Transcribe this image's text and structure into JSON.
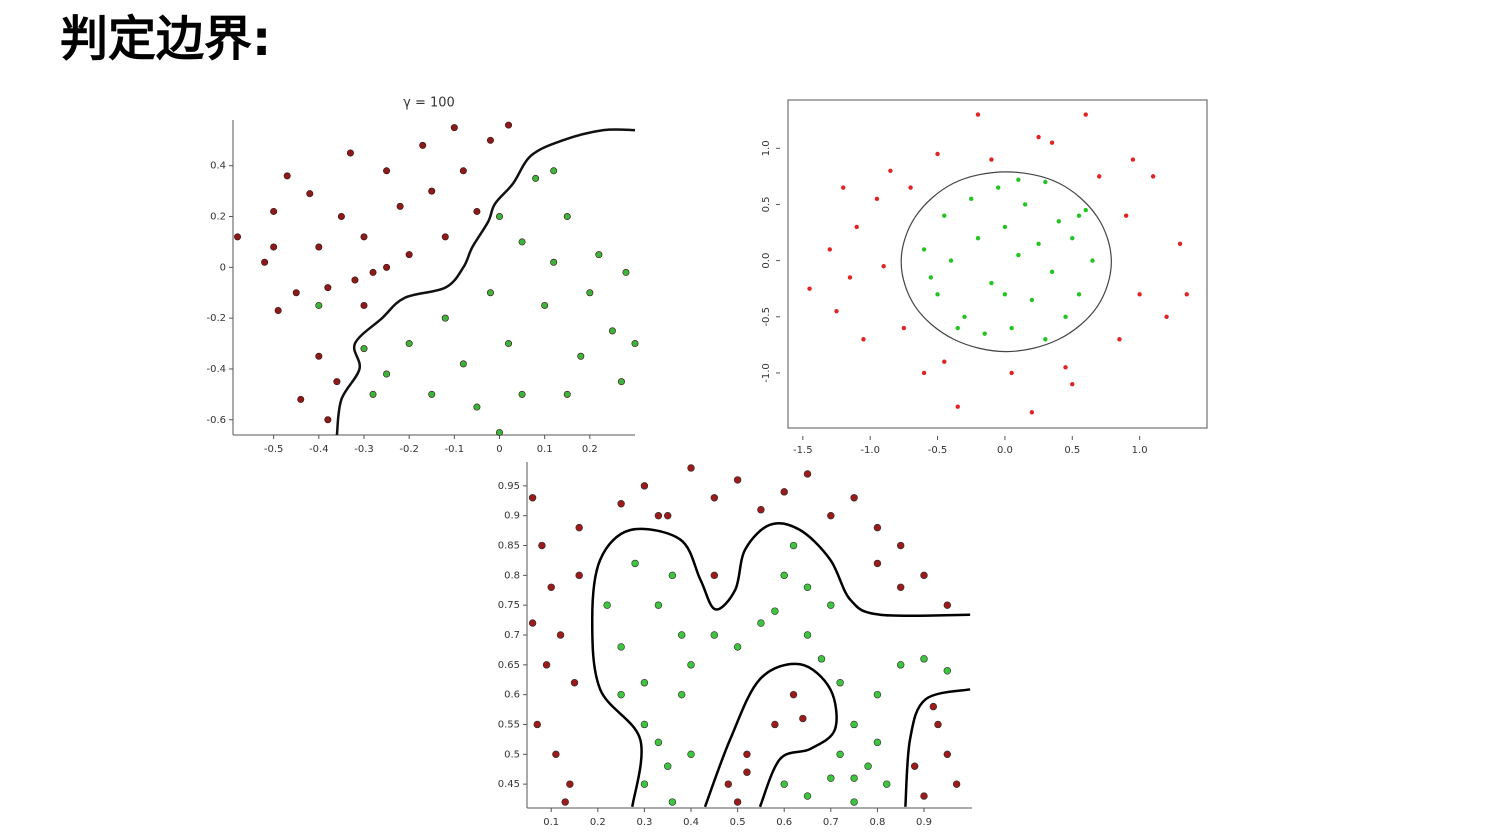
{
  "title": "判定边界:",
  "chart_data": [
    {
      "type": "scatter",
      "title": "γ = 100",
      "frame": false,
      "edgecolor": "#3a1010",
      "xlim": [
        -0.59,
        0.3
      ],
      "ylim": [
        -0.66,
        0.58
      ],
      "xticks": [
        -0.5,
        -0.4,
        -0.3,
        -0.2,
        -0.1,
        0,
        0.1,
        0.2
      ],
      "yticks": [
        -0.6,
        -0.4,
        -0.2,
        0,
        0.2,
        0.4
      ],
      "series": [
        {
          "color": "#8b1a1a",
          "x": [
            -0.58,
            -0.52,
            -0.5,
            -0.5,
            -0.47,
            -0.45,
            -0.49,
            -0.42,
            -0.4,
            -0.38,
            -0.35,
            -0.33,
            -0.3,
            -0.28,
            -0.25,
            -0.22,
            -0.2,
            -0.17,
            -0.15,
            -0.12,
            -0.1,
            -0.08,
            -0.05,
            -0.02,
            0.02,
            -0.4,
            -0.36,
            -0.38,
            -0.44,
            -0.3,
            -0.25,
            -0.32
          ],
          "y": [
            0.12,
            0.02,
            0.22,
            0.08,
            0.36,
            -0.1,
            -0.17,
            0.29,
            0.08,
            -0.08,
            0.2,
            0.45,
            0.12,
            -0.02,
            0.38,
            0.24,
            0.05,
            0.48,
            0.3,
            0.12,
            0.55,
            0.38,
            0.22,
            0.5,
            0.56,
            -0.35,
            -0.45,
            -0.6,
            -0.52,
            -0.15,
            0,
            -0.05
          ]
        },
        {
          "color": "#3cb43c",
          "x": [
            -0.4,
            -0.3,
            -0.28,
            -0.25,
            -0.2,
            -0.15,
            -0.12,
            -0.08,
            -0.05,
            -0.02,
            0,
            0.02,
            0.05,
            0.05,
            0.08,
            0.1,
            0.12,
            0.15,
            0.18,
            0.2,
            0.22,
            0.25,
            0.27,
            0.28,
            0.3,
            0.12,
            0,
            0.15
          ],
          "y": [
            -0.15,
            -0.32,
            -0.5,
            -0.42,
            -0.3,
            -0.5,
            -0.2,
            -0.38,
            -0.55,
            -0.1,
            0.2,
            -0.3,
            0.1,
            -0.5,
            0.35,
            -0.15,
            0.02,
            0.2,
            -0.35,
            -0.1,
            0.05,
            -0.25,
            -0.45,
            -0.02,
            -0.3,
            0.38,
            -0.65,
            -0.5
          ]
        }
      ],
      "boundaries": [
        {
          "color": "#111111",
          "x": [
            -0.36,
            -0.35,
            -0.31,
            -0.32,
            -0.26,
            -0.21,
            -0.12,
            -0.08,
            -0.06,
            -0.025,
            -0.01,
            0.03,
            0.07,
            0.14,
            0.23,
            0.3
          ],
          "y": [
            -0.66,
            -0.52,
            -0.4,
            -0.3,
            -0.2,
            -0.12,
            -0.08,
            0,
            0.08,
            0.18,
            0.25,
            0.33,
            0.44,
            0.5,
            0.54,
            0.54
          ]
        }
      ]
    },
    {
      "type": "scatter",
      "frame": true,
      "xlim": [
        -1.61,
        1.5
      ],
      "ylim": [
        -1.49,
        1.43
      ],
      "xticks": [
        -1.5,
        {
          "value": -1,
          "label": "-1.0"
        },
        -0.5,
        {
          "value": 0,
          "label": "0.0"
        },
        0.5,
        {
          "value": 1,
          "label": "1.0"
        }
      ],
      "yticks": [
        {
          "value": -1,
          "label": "-1.0"
        },
        -0.5,
        {
          "value": 0,
          "label": "0.0"
        },
        0.5,
        {
          "value": 1,
          "label": "1.0"
        }
      ],
      "series": [
        {
          "color": "#e02424",
          "x": [
            -1.45,
            -1.3,
            -1.2,
            -1.25,
            -1.1,
            -1.05,
            -0.95,
            -0.9,
            -0.85,
            -0.75,
            -0.6,
            -0.5,
            -0.45,
            -0.35,
            -0.2,
            -0.1,
            0.05,
            0.2,
            0.35,
            0.45,
            0.6,
            0.7,
            0.85,
            0.9,
            1.0,
            1.1,
            1.2,
            1.3,
            1.35,
            0.95,
            -0.7,
            0.5,
            -1.15,
            0.25
          ],
          "y": [
            -0.25,
            0.1,
            0.65,
            -0.45,
            0.3,
            -0.7,
            0.55,
            -0.05,
            0.8,
            -0.6,
            -1.0,
            0.95,
            -0.9,
            -1.3,
            1.3,
            0.9,
            -1.0,
            -1.35,
            1.05,
            -0.95,
            1.3,
            0.75,
            -0.7,
            0.4,
            -0.3,
            0.75,
            -0.5,
            0.15,
            -0.3,
            0.9,
            0.65,
            -1.1,
            -0.15,
            1.1
          ]
        },
        {
          "color": "#22c422",
          "x": [
            -0.6,
            -0.5,
            -0.45,
            -0.4,
            -0.3,
            -0.25,
            -0.2,
            -0.1,
            -0.05,
            0,
            0.05,
            0.1,
            0.15,
            0.2,
            0.25,
            0.3,
            0.35,
            0.4,
            0.45,
            0.5,
            0.55,
            0.6,
            0.65,
            -0.55,
            -0.15,
            0.1,
            0.3,
            0.55,
            -0.35,
            0
          ],
          "y": [
            0.1,
            -0.3,
            0.4,
            0,
            -0.5,
            0.55,
            0.2,
            -0.2,
            0.65,
            0.3,
            -0.6,
            0.05,
            0.5,
            -0.35,
            0.15,
            0.7,
            -0.1,
            0.35,
            -0.5,
            0.2,
            -0.3,
            0.45,
            0,
            -0.15,
            -0.65,
            0.72,
            -0.7,
            0.4,
            -0.6,
            -0.3
          ]
        }
      ],
      "boundaries": [
        {
          "color": "#444444",
          "closed": true,
          "x": [
            0.79,
            0.685,
            0.4,
            0.01,
            -0.38,
            -0.665,
            -0.77,
            -0.665,
            -0.38,
            0.01,
            0.4,
            0.685
          ],
          "y": [
            -0.01,
            0.39,
            0.69,
            0.79,
            0.69,
            0.39,
            -0.01,
            -0.41,
            -0.7,
            -0.81,
            -0.7,
            -0.41
          ]
        }
      ]
    },
    {
      "type": "scatter",
      "frame": false,
      "edgecolor": "#2a2a2a",
      "xlim": [
        0.048,
        1.003
      ],
      "ylim": [
        0.41,
        0.99
      ],
      "xticks": [
        0.1,
        0.2,
        0.3,
        0.4,
        0.5,
        0.6,
        0.7,
        0.8,
        0.9
      ],
      "yticks": [
        0.45,
        0.5,
        0.55,
        0.6,
        0.65,
        0.7,
        0.75,
        0.8,
        0.85,
        0.9,
        0.95
      ],
      "series": [
        {
          "color": "#9b1b1b",
          "x": [
            0.06,
            0.08,
            0.1,
            0.12,
            0.15,
            0.07,
            0.11,
            0.14,
            0.09,
            0.16,
            0.13,
            0.06,
            0.16,
            0.25,
            0.3,
            0.35,
            0.4,
            0.45,
            0.5,
            0.55,
            0.6,
            0.65,
            0.7,
            0.75,
            0.8,
            0.85,
            0.9,
            0.95,
            0.33,
            0.45,
            0.48,
            0.52,
            0.58,
            0.62,
            0.52,
            0.64,
            0.5,
            0.92,
            0.95,
            0.97,
            0.9,
            0.88,
            0.93,
            0.8,
            0.85
          ],
          "y": [
            0.93,
            0.85,
            0.78,
            0.7,
            0.62,
            0.55,
            0.5,
            0.45,
            0.65,
            0.88,
            0.42,
            0.72,
            0.8,
            0.92,
            0.95,
            0.9,
            0.98,
            0.93,
            0.96,
            0.91,
            0.94,
            0.97,
            0.9,
            0.93,
            0.88,
            0.85,
            0.8,
            0.75,
            0.9,
            0.8,
            0.45,
            0.5,
            0.55,
            0.6,
            0.47,
            0.56,
            0.42,
            0.58,
            0.5,
            0.45,
            0.43,
            0.48,
            0.55,
            0.82,
            0.78
          ]
        },
        {
          "color": "#3fc43f",
          "x": [
            0.22,
            0.25,
            0.28,
            0.3,
            0.33,
            0.36,
            0.38,
            0.25,
            0.3,
            0.35,
            0.4,
            0.45,
            0.5,
            0.55,
            0.6,
            0.65,
            0.7,
            0.62,
            0.58,
            0.65,
            0.68,
            0.72,
            0.75,
            0.8,
            0.85,
            0.9,
            0.95,
            0.8,
            0.75,
            0.3,
            0.33,
            0.36,
            0.4,
            0.38,
            0.72,
            0.75,
            0.78,
            0.82,
            0.6,
            0.65,
            0.7
          ],
          "y": [
            0.75,
            0.68,
            0.82,
            0.62,
            0.75,
            0.8,
            0.7,
            0.6,
            0.55,
            0.48,
            0.65,
            0.7,
            0.68,
            0.72,
            0.8,
            0.78,
            0.75,
            0.85,
            0.74,
            0.7,
            0.66,
            0.62,
            0.55,
            0.6,
            0.65,
            0.66,
            0.64,
            0.52,
            0.46,
            0.45,
            0.52,
            0.42,
            0.5,
            0.6,
            0.5,
            0.42,
            0.48,
            0.45,
            0.45,
            0.43,
            0.46
          ]
        }
      ],
      "boundaries": [
        {
          "color": "#000000",
          "x": [
            0.274,
            0.291,
            0.205,
            0.188,
            0.205,
            0.27,
            0.377,
            0.42,
            0.452,
            0.495,
            0.516,
            0.57,
            0.634,
            0.699,
            0.742,
            0.806,
            0.999
          ],
          "y": [
            0.412,
            0.525,
            0.609,
            0.726,
            0.826,
            0.876,
            0.86,
            0.793,
            0.743,
            0.776,
            0.843,
            0.885,
            0.876,
            0.826,
            0.759,
            0.734,
            0.734
          ]
        },
        {
          "color": "#000000",
          "x": [
            0.43,
            0.484,
            0.548,
            0.634,
            0.699,
            0.709,
            0.656,
            0.591,
            0.548
          ],
          "y": [
            0.412,
            0.525,
            0.626,
            0.651,
            0.609,
            0.542,
            0.509,
            0.492,
            0.412
          ]
        },
        {
          "color": "#000000",
          "x": [
            0.86,
            0.87,
            0.903,
            0.999
          ],
          "y": [
            0.412,
            0.525,
            0.592,
            0.609
          ]
        }
      ]
    }
  ]
}
